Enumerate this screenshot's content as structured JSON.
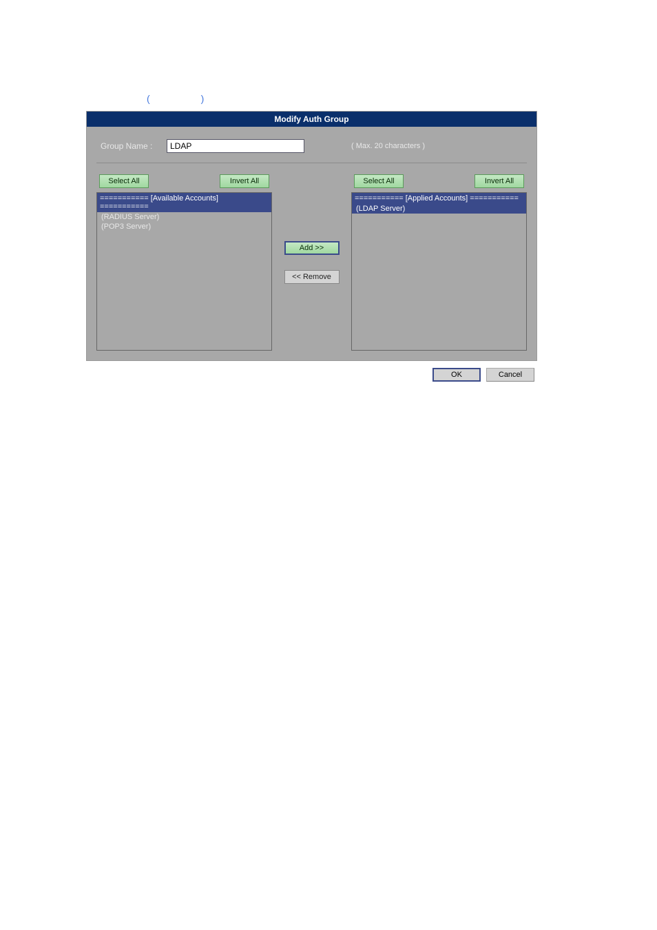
{
  "figure_caption": {
    "paren_open": "(",
    "paren_close": ")"
  },
  "dialog": {
    "title": "Modify Auth Group",
    "group_name_label": "Group Name :",
    "group_name_value": "LDAP",
    "group_name_hint": "( Max. 20 characters )"
  },
  "left_panel": {
    "select_all": "Select All",
    "invert_all": "Invert All",
    "header": "=========== [Available Accounts] ===========",
    "items": [
      "(RADIUS Server)",
      "(POP3 Server)"
    ]
  },
  "right_panel": {
    "select_all": "Select All",
    "invert_all": "Invert All",
    "header": "=========== [Applied Accounts] ===========",
    "items": [
      "(LDAP Server)"
    ]
  },
  "center_buttons": {
    "add": "Add >>",
    "remove": "<< Remove"
  },
  "footer": {
    "ok": "OK",
    "cancel": "Cancel"
  },
  "styles": {
    "header_bg": "#0a2f6b",
    "body_bg": "#a8a8a8",
    "btn_green_bg": "#a0d8a0",
    "btn_gray_bg": "#d4d4d4",
    "list_selected_bg": "#3a4a8a",
    "text_light": "#e8e8e8"
  }
}
